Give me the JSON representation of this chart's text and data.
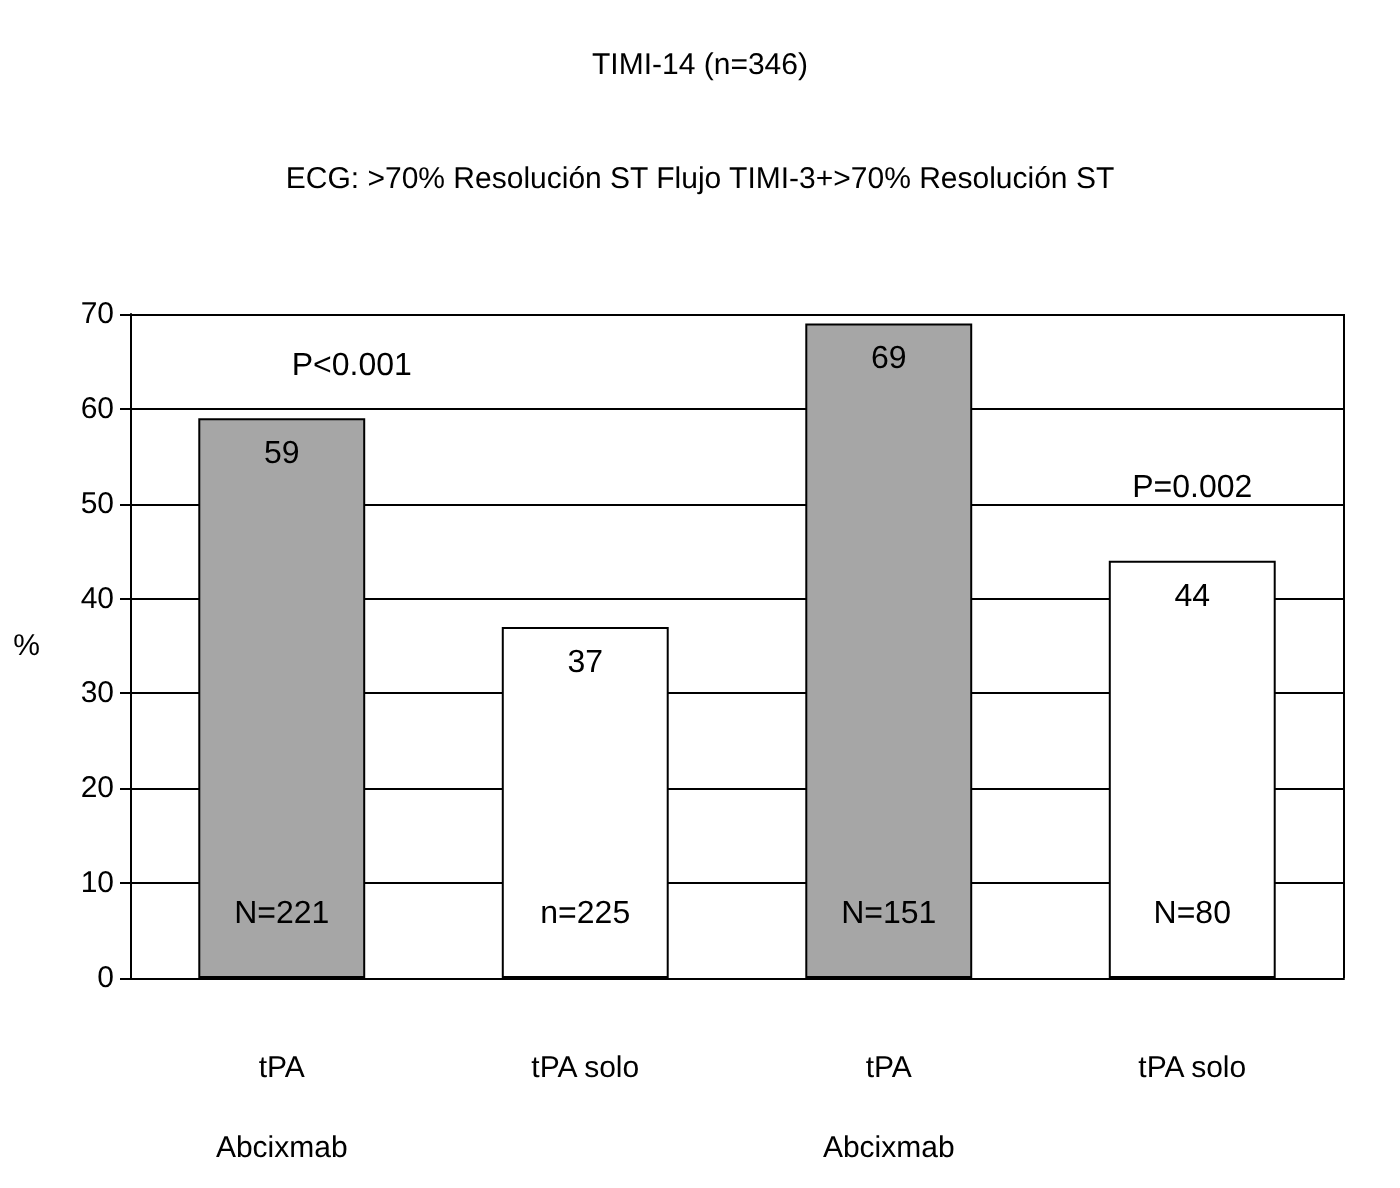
{
  "chart_data": {
    "type": "bar",
    "title": "TIMI-14 (n=346)",
    "subtitle": "ECG: >70% Resolución ST Flujo TIMI-3+>70% Resolución ST",
    "ylabel": "%",
    "categories": [
      "tPA\nAbcixmab",
      "tPA solo",
      "tPA\nAbcixmab",
      "tPA solo"
    ],
    "values": [
      59,
      37,
      69,
      44
    ],
    "colors": [
      "#a6a6a6",
      "#ffffff",
      "#a6a6a6",
      "#ffffff"
    ],
    "data_labels": true,
    "ylim": [
      0,
      70
    ],
    "yticks": [
      0,
      10,
      20,
      30,
      40,
      50,
      60,
      70
    ],
    "grid": "y",
    "annotations": [
      "N=221",
      "n=225",
      "N=151",
      "N=80",
      "P<0.001",
      "P=0.002"
    ]
  }
}
